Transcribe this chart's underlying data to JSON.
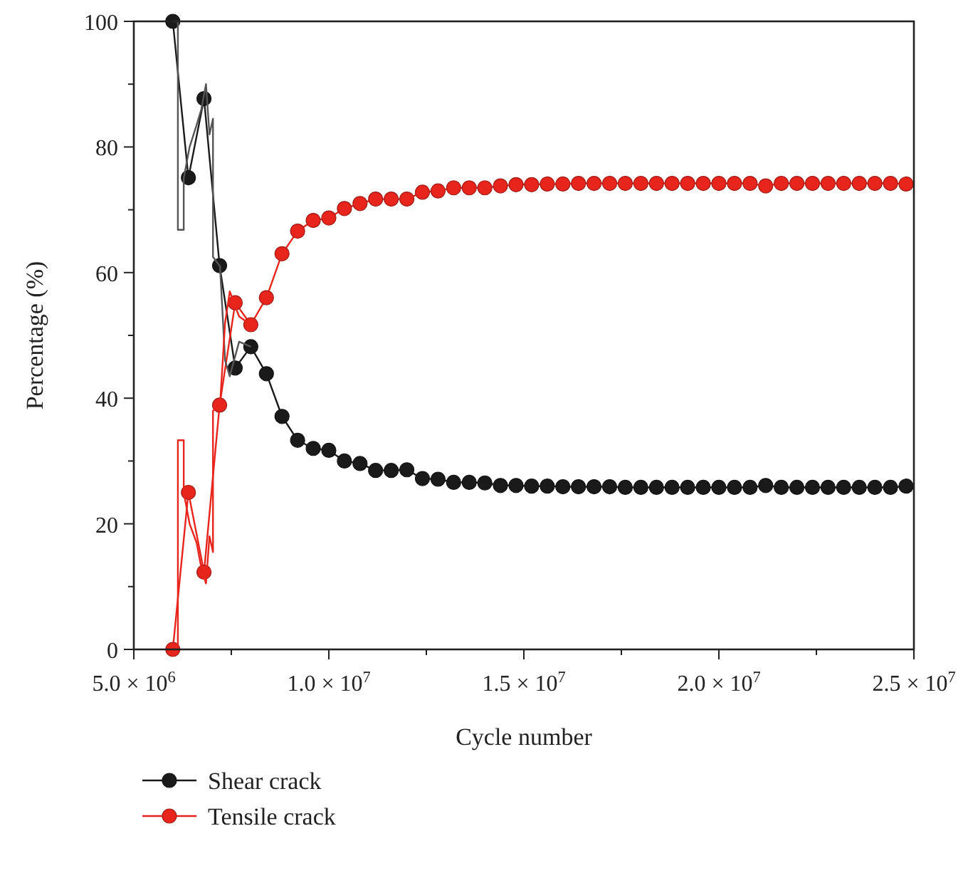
{
  "chart_data": {
    "type": "line",
    "xlabel": "Cycle number",
    "ylabel": "Percentage (%)",
    "xlim": [
      5000000,
      25000000
    ],
    "xticks": [
      {
        "value": 5000000,
        "label": "5.0 × 10$^{6}$"
      },
      {
        "value": 7500000,
        "label": null
      },
      {
        "value": 10000000,
        "label": "1.0 × 10$^{7}$"
      },
      {
        "value": 12500000,
        "label": null
      },
      {
        "value": 15000000,
        "label": "1.5 × 10$^{7}$"
      },
      {
        "value": 17500000,
        "label": null
      },
      {
        "value": 20000000,
        "label": "2.0 × 10$^{7}$"
      },
      {
        "value": 22500000,
        "label": null
      },
      {
        "value": 25000000,
        "label": "2.5 × 10$^{7}$"
      }
    ],
    "ylim": [
      0,
      100
    ],
    "yticks": [
      0,
      {
        "value": 10,
        "label": null
      },
      20,
      {
        "value": 30,
        "label": null
      },
      40,
      {
        "value": 50,
        "label": null
      },
      60,
      {
        "value": 70,
        "label": null
      },
      80,
      {
        "value": 90,
        "label": null
      },
      100
    ],
    "grid": false,
    "legend": "bottom",
    "marker": "circle",
    "line_style": "solid",
    "x": [
      6000000,
      6400000,
      6800000,
      7200000,
      7600000,
      8000000,
      8400000,
      8800000,
      9200000,
      9600000,
      10000000,
      10400000,
      10800000,
      11200000,
      11600000,
      12000000,
      12400000,
      12800000,
      13200000,
      13600000,
      14000000,
      14400000,
      14800000,
      15200000,
      15600000,
      16000000,
      16400000,
      16800000,
      17200000,
      17600000,
      18000000,
      18400000,
      18800000,
      19200000,
      19600000,
      20000000,
      20400000,
      20800000,
      21200000,
      21600000,
      22000000,
      22400000,
      22800000,
      23200000,
      23600000,
      24000000,
      24400000,
      24800000
    ],
    "series": [
      {
        "name": "Shear crack",
        "color": "#1a1a1a",
        "values": [
          100,
          75.1,
          87.7,
          61.1,
          44.8,
          48.2,
          43.9,
          37.1,
          33.3,
          32,
          31.7,
          30,
          29.6,
          28.5,
          28.5,
          28.6,
          27.2,
          27.1,
          26.6,
          26.6,
          26.5,
          26.1,
          26.1,
          26,
          26,
          25.9,
          25.9,
          25.9,
          25.9,
          25.8,
          25.8,
          25.8,
          25.8,
          25.8,
          25.8,
          25.8,
          25.8,
          25.8,
          26.1,
          25.8,
          25.8,
          25.8,
          25.8,
          25.8,
          25.8,
          25.8,
          25.8,
          26
        ]
      },
      {
        "name": "Tensile crack",
        "color": "#e8251c",
        "values": [
          0,
          25,
          12.3,
          38.9,
          55.2,
          51.7,
          56,
          63,
          66.6,
          68.3,
          68.7,
          70.2,
          71,
          71.7,
          71.7,
          71.7,
          72.8,
          73,
          73.5,
          73.5,
          73.5,
          73.8,
          74,
          74,
          74.1,
          74.1,
          74.2,
          74.2,
          74.2,
          74.2,
          74.2,
          74.2,
          74.2,
          74.2,
          74.2,
          74.2,
          74.2,
          74.2,
          73.8,
          74.2,
          74.2,
          74.2,
          74.2,
          74.2,
          74.2,
          74.2,
          74.2,
          74.1
        ]
      },
      {
        "color": "#555555",
        "marker": "none",
        "x": [
          6000000,
          6130000,
          6130000,
          6280000,
          6280000,
          6430000,
          6610000,
          6730000,
          6850000,
          6940000,
          7030000,
          7030000,
          7210000,
          7340000,
          7460000,
          7700000,
          8000000
        ],
        "values": [
          100,
          100,
          66.8,
          66.8,
          75,
          80,
          83.5,
          86,
          90,
          82,
          84.5,
          62.5,
          61,
          46,
          43.5,
          49,
          48.2
        ]
      },
      {
        "color": "#e8251c",
        "marker": "none",
        "x": [
          6000000,
          6130000,
          6130000,
          6280000,
          6280000,
          6430000,
          6610000,
          6730000,
          6850000,
          6940000,
          7030000,
          7030000,
          7210000,
          7340000,
          7460000,
          7700000,
          8000000
        ],
        "values": [
          0,
          0,
          33.3,
          33.3,
          25,
          20,
          17,
          13,
          10.5,
          18,
          15.5,
          38,
          38.9,
          52,
          57,
          53,
          51.7
        ]
      }
    ]
  }
}
